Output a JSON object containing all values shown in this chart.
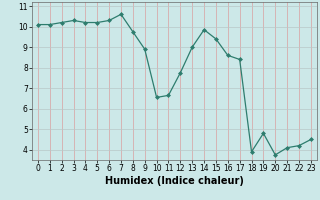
{
  "xlabel": "Humidex (Indice chaleur)",
  "ylabel": "",
  "x_values": [
    0,
    1,
    2,
    3,
    4,
    5,
    6,
    7,
    8,
    9,
    10,
    11,
    12,
    13,
    14,
    15,
    16,
    17,
    18,
    19,
    20,
    21,
    22,
    23
  ],
  "y_values": [
    10.1,
    10.1,
    10.2,
    10.3,
    10.2,
    10.2,
    10.3,
    10.6,
    9.75,
    8.9,
    6.55,
    6.65,
    7.75,
    9.0,
    9.85,
    9.4,
    8.6,
    8.4,
    3.9,
    4.8,
    3.75,
    4.1,
    4.2,
    4.5
  ],
  "line_color": "#2e7d6e",
  "marker": "D",
  "marker_size": 2.0,
  "bg_color": "#cce8e8",
  "grid_v_color": "#d9a0a0",
  "grid_h_color": "#b8c8c8",
  "xlim": [
    -0.5,
    23.5
  ],
  "ylim": [
    3.5,
    11.2
  ],
  "yticks": [
    4,
    5,
    6,
    7,
    8,
    9,
    10,
    11
  ],
  "xticks": [
    0,
    1,
    2,
    3,
    4,
    5,
    6,
    7,
    8,
    9,
    10,
    11,
    12,
    13,
    14,
    15,
    16,
    17,
    18,
    19,
    20,
    21,
    22,
    23
  ],
  "tick_fontsize": 5.5,
  "xlabel_fontsize": 7
}
